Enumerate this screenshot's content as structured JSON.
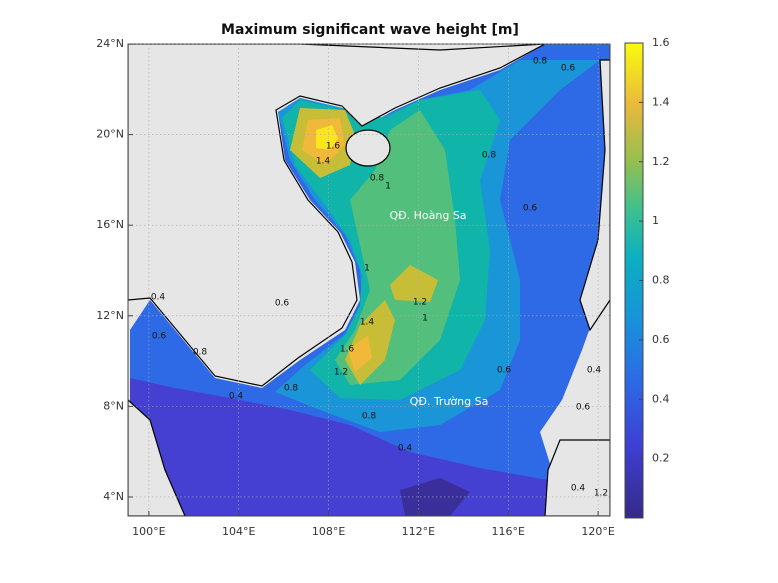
{
  "map": {
    "title": "Maximum significant wave height [m]",
    "xlim": [
      99.07,
      120.53
    ],
    "ylim": [
      3.16,
      24
    ],
    "xticks": [
      {
        "value": 100,
        "label": "100°E"
      },
      {
        "value": 104,
        "label": "104°E"
      },
      {
        "value": 108,
        "label": "108°E"
      },
      {
        "value": 112,
        "label": "112°E"
      },
      {
        "value": 116,
        "label": "116°E"
      },
      {
        "value": 120,
        "label": "120°E"
      }
    ],
    "yticks": [
      {
        "value": 4,
        "label": "4°N"
      },
      {
        "value": 8,
        "label": "8°N"
      },
      {
        "value": 12,
        "label": "12°N"
      },
      {
        "value": 16,
        "label": "16°N"
      },
      {
        "value": 20,
        "label": "20°N"
      },
      {
        "value": 24,
        "label": "24°N"
      }
    ],
    "grid": true,
    "places": [
      "QĐ. Hoàng Sa",
      "QĐ. Trường Sa"
    ],
    "contour_labels": [
      0.8,
      0.6,
      0.6,
      0.8,
      0.4,
      1.6,
      1.4,
      1,
      0.8,
      1,
      1.2,
      1,
      0.8,
      0.6,
      1.4,
      1.6,
      1.2,
      0.8,
      0.4,
      0.6,
      0.8,
      0.6,
      0.4,
      0.4,
      0.6,
      0.4,
      1.2
    ],
    "colorbar": {
      "lim": [
        0,
        1.6
      ],
      "ticks": [
        0.2,
        0.4,
        0.6,
        0.8,
        1,
        1.2,
        1.4,
        1.6
      ]
    }
  }
}
